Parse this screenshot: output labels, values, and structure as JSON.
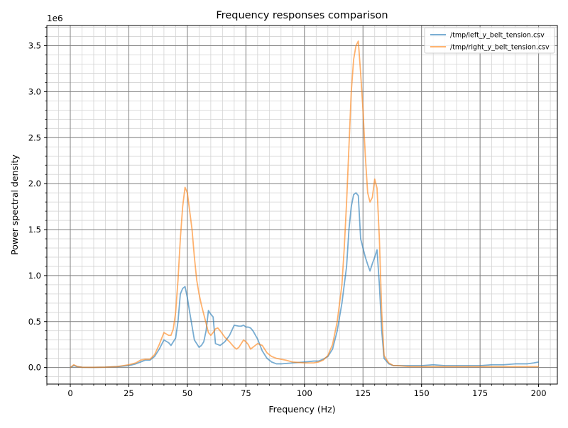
{
  "chart_data": {
    "type": "line",
    "title": "Frequency responses comparison",
    "xlabel": "Frequency (Hz)",
    "ylabel": "Power spectral density",
    "y_scale_label": "1e6",
    "xlim": [
      -10,
      208
    ],
    "ylim": [
      -0.18,
      3.72
    ],
    "x_ticks": [
      0,
      25,
      50,
      75,
      100,
      125,
      150,
      175,
      200
    ],
    "x_tick_labels": [
      "0",
      "25",
      "50",
      "75",
      "100",
      "125",
      "150",
      "175",
      "200"
    ],
    "y_ticks": [
      0,
      0.5,
      1.0,
      1.5,
      2.0,
      2.5,
      3.0,
      3.5
    ],
    "y_tick_labels": [
      "0.0",
      "0.5",
      "1.0",
      "1.5",
      "2.0",
      "2.5",
      "3.0",
      "3.5"
    ],
    "x_minor_step": 5,
    "y_minor_step": 0.1,
    "grid": true,
    "legend_position": "top-right",
    "series": [
      {
        "name": "/tmp/left_y_belt_tension.csv",
        "color": "#1f77b4",
        "points": [
          [
            0,
            0
          ],
          [
            1.5,
            0.02
          ],
          [
            3,
            0.01
          ],
          [
            5,
            0.003
          ],
          [
            10,
            0.002
          ],
          [
            15,
            0.004
          ],
          [
            20,
            0.01
          ],
          [
            25,
            0.02
          ],
          [
            28,
            0.04
          ],
          [
            30,
            0.06
          ],
          [
            32,
            0.08
          ],
          [
            34,
            0.08
          ],
          [
            36,
            0.12
          ],
          [
            38,
            0.2
          ],
          [
            40,
            0.3
          ],
          [
            42,
            0.27
          ],
          [
            43,
            0.24
          ],
          [
            45,
            0.32
          ],
          [
            46,
            0.5
          ],
          [
            47,
            0.8
          ],
          [
            48,
            0.86
          ],
          [
            49,
            0.88
          ],
          [
            50,
            0.76
          ],
          [
            51,
            0.6
          ],
          [
            52,
            0.45
          ],
          [
            53,
            0.3
          ],
          [
            55,
            0.22
          ],
          [
            56,
            0.24
          ],
          [
            57,
            0.28
          ],
          [
            58,
            0.4
          ],
          [
            59,
            0.62
          ],
          [
            60,
            0.58
          ],
          [
            61,
            0.55
          ],
          [
            62,
            0.26
          ],
          [
            63,
            0.25
          ],
          [
            64,
            0.24
          ],
          [
            66,
            0.28
          ],
          [
            68,
            0.35
          ],
          [
            70,
            0.46
          ],
          [
            72,
            0.45
          ],
          [
            73,
            0.45
          ],
          [
            74,
            0.46
          ],
          [
            75,
            0.44
          ],
          [
            76,
            0.44
          ],
          [
            77,
            0.43
          ],
          [
            78,
            0.4
          ],
          [
            80,
            0.31
          ],
          [
            82,
            0.18
          ],
          [
            84,
            0.1
          ],
          [
            86,
            0.06
          ],
          [
            88,
            0.04
          ],
          [
            90,
            0.04
          ],
          [
            95,
            0.05
          ],
          [
            100,
            0.06
          ],
          [
            104,
            0.07
          ],
          [
            106,
            0.07
          ],
          [
            108,
            0.09
          ],
          [
            110,
            0.12
          ],
          [
            112,
            0.2
          ],
          [
            114,
            0.4
          ],
          [
            116,
            0.7
          ],
          [
            118,
            1.1
          ],
          [
            119,
            1.5
          ],
          [
            120,
            1.75
          ],
          [
            121,
            1.88
          ],
          [
            122,
            1.9
          ],
          [
            123,
            1.87
          ],
          [
            124,
            1.4
          ],
          [
            125,
            1.3
          ],
          [
            126,
            1.2
          ],
          [
            127,
            1.12
          ],
          [
            128,
            1.05
          ],
          [
            129,
            1.13
          ],
          [
            130,
            1.2
          ],
          [
            131,
            1.28
          ],
          [
            132,
            0.9
          ],
          [
            133,
            0.4
          ],
          [
            134,
            0.1
          ],
          [
            136,
            0.04
          ],
          [
            138,
            0.02
          ],
          [
            140,
            0.02
          ],
          [
            145,
            0.02
          ],
          [
            150,
            0.02
          ],
          [
            155,
            0.03
          ],
          [
            160,
            0.02
          ],
          [
            165,
            0.02
          ],
          [
            170,
            0.02
          ],
          [
            175,
            0.02
          ],
          [
            180,
            0.03
          ],
          [
            185,
            0.03
          ],
          [
            190,
            0.04
          ],
          [
            195,
            0.04
          ],
          [
            198,
            0.05
          ],
          [
            200,
            0.06
          ]
        ]
      },
      {
        "name": "/tmp/right_y_belt_tension.csv",
        "color": "#ff7f0e",
        "points": [
          [
            0,
            0
          ],
          [
            1.5,
            0.03
          ],
          [
            3,
            0.01
          ],
          [
            5,
            0.003
          ],
          [
            10,
            0.002
          ],
          [
            15,
            0.004
          ],
          [
            20,
            0.01
          ],
          [
            25,
            0.03
          ],
          [
            28,
            0.05
          ],
          [
            30,
            0.08
          ],
          [
            32,
            0.09
          ],
          [
            34,
            0.09
          ],
          [
            36,
            0.14
          ],
          [
            38,
            0.25
          ],
          [
            40,
            0.38
          ],
          [
            42,
            0.35
          ],
          [
            43,
            0.35
          ],
          [
            44,
            0.42
          ],
          [
            45,
            0.6
          ],
          [
            46,
            0.95
          ],
          [
            47,
            1.4
          ],
          [
            48,
            1.75
          ],
          [
            49,
            1.96
          ],
          [
            50,
            1.9
          ],
          [
            51,
            1.7
          ],
          [
            52,
            1.5
          ],
          [
            53,
            1.2
          ],
          [
            54,
            0.95
          ],
          [
            55,
            0.8
          ],
          [
            56,
            0.68
          ],
          [
            57,
            0.58
          ],
          [
            58,
            0.48
          ],
          [
            59,
            0.38
          ],
          [
            60,
            0.35
          ],
          [
            61,
            0.38
          ],
          [
            62,
            0.42
          ],
          [
            63,
            0.43
          ],
          [
            64,
            0.4
          ],
          [
            66,
            0.33
          ],
          [
            68,
            0.28
          ],
          [
            70,
            0.22
          ],
          [
            71,
            0.2
          ],
          [
            72,
            0.22
          ],
          [
            74,
            0.3
          ],
          [
            75,
            0.28
          ],
          [
            76,
            0.25
          ],
          [
            77,
            0.2
          ],
          [
            78,
            0.22
          ],
          [
            80,
            0.26
          ],
          [
            82,
            0.24
          ],
          [
            84,
            0.16
          ],
          [
            86,
            0.12
          ],
          [
            88,
            0.1
          ],
          [
            90,
            0.09
          ],
          [
            92,
            0.08
          ],
          [
            95,
            0.06
          ],
          [
            100,
            0.05
          ],
          [
            104,
            0.05
          ],
          [
            106,
            0.06
          ],
          [
            108,
            0.08
          ],
          [
            110,
            0.13
          ],
          [
            112,
            0.25
          ],
          [
            114,
            0.5
          ],
          [
            116,
            0.9
          ],
          [
            117,
            1.3
          ],
          [
            118,
            1.8
          ],
          [
            119,
            2.4
          ],
          [
            120,
            3.0
          ],
          [
            121,
            3.35
          ],
          [
            122,
            3.5
          ],
          [
            123,
            3.55
          ],
          [
            124,
            3.2
          ],
          [
            125,
            2.8
          ],
          [
            126,
            2.3
          ],
          [
            127,
            1.9
          ],
          [
            128,
            1.8
          ],
          [
            129,
            1.85
          ],
          [
            130,
            2.05
          ],
          [
            131,
            1.95
          ],
          [
            132,
            1.4
          ],
          [
            133,
            0.6
          ],
          [
            134,
            0.13
          ],
          [
            136,
            0.05
          ],
          [
            138,
            0.02
          ],
          [
            140,
            0.02
          ],
          [
            145,
            0.01
          ],
          [
            150,
            0.01
          ],
          [
            160,
            0.01
          ],
          [
            170,
            0.01
          ],
          [
            180,
            0.01
          ],
          [
            190,
            0.01
          ],
          [
            195,
            0.01
          ],
          [
            200,
            0.01
          ]
        ]
      }
    ]
  }
}
